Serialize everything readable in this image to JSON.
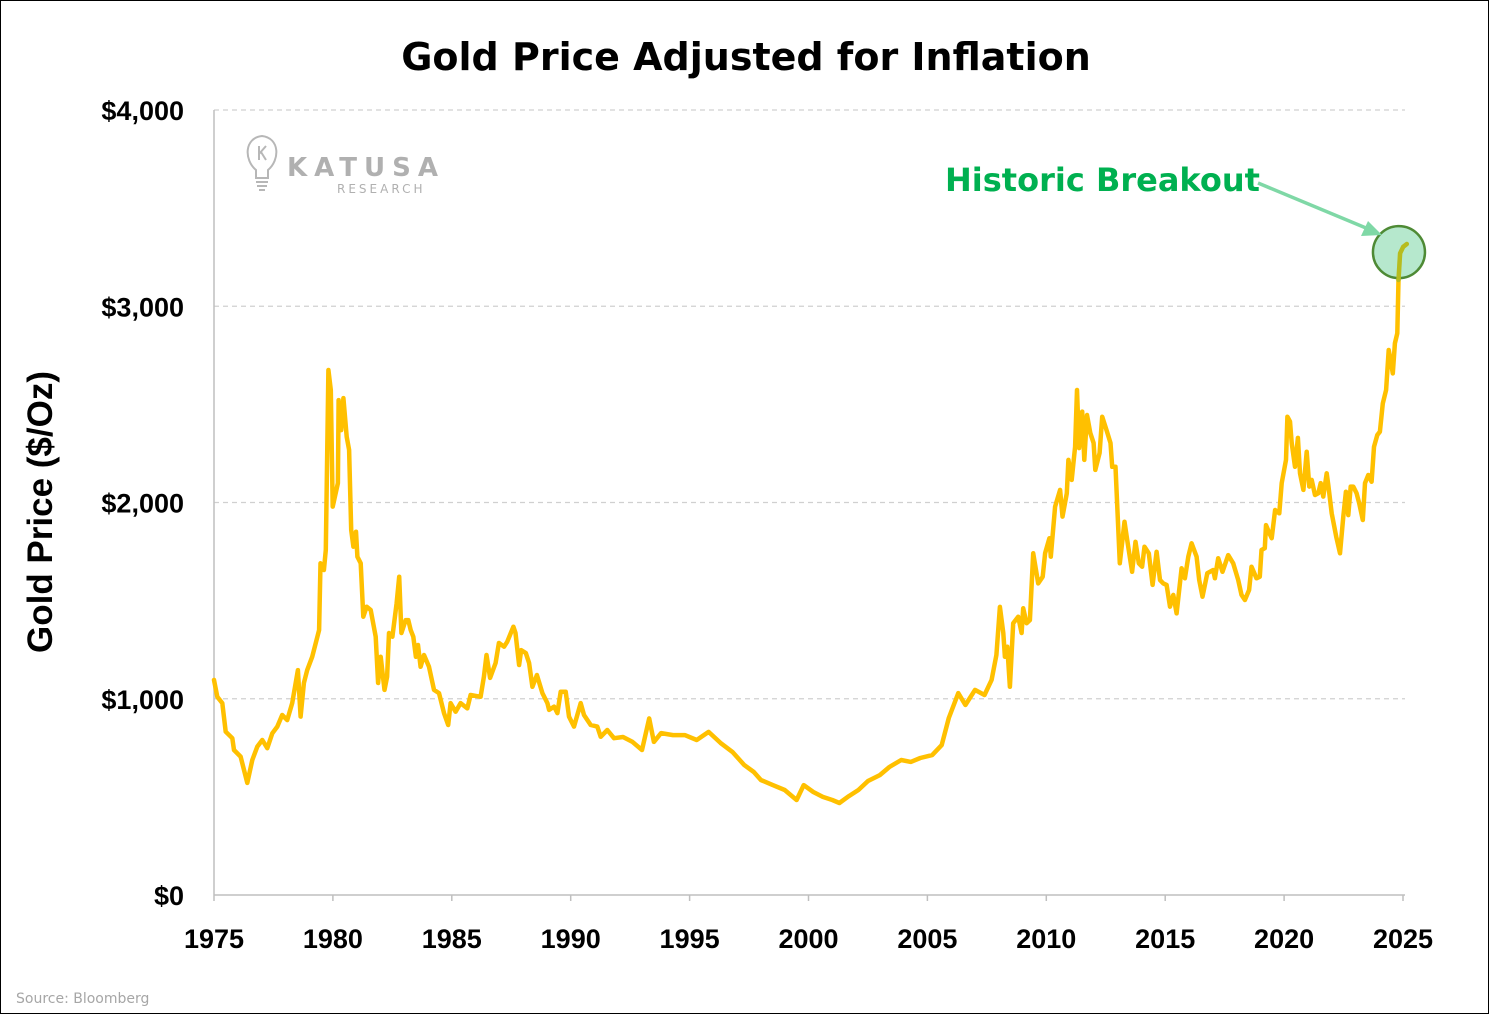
{
  "chart_data": {
    "type": "line",
    "title": "Gold Price Adjusted for Inflation",
    "xlabel": "",
    "ylabel": "Gold Price ($/Oz)",
    "xlim": [
      1975,
      2025
    ],
    "ylim": [
      0,
      4000
    ],
    "x_ticks": [
      "1975",
      "1980",
      "1985",
      "1990",
      "1995",
      "2000",
      "2005",
      "2010",
      "2015",
      "2020",
      "2025"
    ],
    "y_ticks": [
      "$0",
      "$1,000",
      "$2,000",
      "$3,000",
      "$4,000"
    ],
    "grid": "horizontal dashed",
    "line_color": "#ffc000",
    "annotation": {
      "text": "Historic Breakout",
      "color": "#00b050",
      "x": 2024.83,
      "y": 3276,
      "circle_fill": "#a9e4c4",
      "arrow_color": "#7fd8a6"
    },
    "source": "Source: Bloomberg",
    "watermark": {
      "name": "KATUSA",
      "sub": "RESEARCH"
    },
    "series": [
      {
        "x": [
          1975.0,
          1975.14,
          1975.35,
          1975.49,
          1975.77,
          1975.84,
          1976.12,
          1976.4,
          1976.61,
          1976.82,
          1977.03,
          1977.24,
          1977.45,
          1977.66,
          1977.87,
          1978.08,
          1978.29,
          1978.53,
          1978.64,
          1978.78,
          1978.92,
          1979.13,
          1979.42,
          1979.48,
          1979.62,
          1979.7,
          1979.81,
          1979.91,
          1979.99,
          1980.21,
          1980.24,
          1980.35,
          1980.44,
          1980.58,
          1980.68,
          1980.77,
          1980.86,
          1980.97,
          1981.03,
          1981.17,
          1981.28,
          1981.42,
          1981.59,
          1981.8,
          1981.9,
          1982.01,
          1982.17,
          1982.28,
          1982.36,
          1982.5,
          1982.68,
          1982.79,
          1982.88,
          1983.06,
          1983.17,
          1983.27,
          1983.38,
          1983.49,
          1983.58,
          1983.69,
          1983.83,
          1984.04,
          1984.25,
          1984.46,
          1984.67,
          1984.85,
          1984.95,
          1985.16,
          1985.37,
          1985.65,
          1985.79,
          1986.21,
          1986.35,
          1986.46,
          1986.61,
          1986.84,
          1986.98,
          1987.2,
          1987.33,
          1987.59,
          1987.68,
          1987.83,
          1987.92,
          1988.11,
          1988.25,
          1988.39,
          1988.58,
          1988.81,
          1989.02,
          1989.09,
          1989.3,
          1989.44,
          1989.58,
          1989.79,
          1989.93,
          1990.14,
          1990.42,
          1990.56,
          1990.84,
          1991.12,
          1991.26,
          1991.54,
          1991.82,
          1992.2,
          1992.6,
          1993.0,
          1993.3,
          1993.5,
          1993.8,
          1994.3,
          1994.8,
          1995.3,
          1995.8,
          1996.3,
          1996.8,
          1997.3,
          1997.7,
          1998.0,
          1998.5,
          1999.0,
          1999.5,
          1999.8,
          2000.2,
          2000.6,
          2001.0,
          2001.3,
          2001.7,
          2002.1,
          2002.5,
          2003.0,
          2003.4,
          2003.9,
          2004.3,
          2004.7,
          2005.2,
          2005.6,
          2005.9,
          2006.3,
          2006.6,
          2007.0,
          2007.4,
          2007.7,
          2007.9,
          2008.05,
          2008.19,
          2008.26,
          2008.36,
          2008.47,
          2008.61,
          2008.82,
          2008.96,
          2009.03,
          2009.17,
          2009.31,
          2009.45,
          2009.66,
          2009.85,
          2009.95,
          2010.13,
          2010.19,
          2010.37,
          2010.58,
          2010.68,
          2010.86,
          2010.93,
          2011.07,
          2011.21,
          2011.29,
          2011.38,
          2011.51,
          2011.6,
          2011.71,
          2011.85,
          2011.99,
          2012.06,
          2012.24,
          2012.35,
          2012.53,
          2012.7,
          2012.77,
          2012.91,
          2013.09,
          2013.29,
          2013.4,
          2013.61,
          2013.75,
          2013.89,
          2014.03,
          2014.13,
          2014.31,
          2014.47,
          2014.64,
          2014.78,
          2014.92,
          2015.06,
          2015.2,
          2015.34,
          2015.48,
          2015.69,
          2015.83,
          2015.97,
          2016.11,
          2016.32,
          2016.43,
          2016.57,
          2016.77,
          2017.02,
          2017.09,
          2017.23,
          2017.41,
          2017.65,
          2017.86,
          2018.07,
          2018.21,
          2018.35,
          2018.53,
          2018.63,
          2018.84,
          2018.98,
          2019.05,
          2019.19,
          2019.24,
          2019.38,
          2019.48,
          2019.62,
          2019.8,
          2019.9,
          2020.08,
          2020.14,
          2020.25,
          2020.32,
          2020.46,
          2020.58,
          2020.67,
          2020.81,
          2020.95,
          2021.06,
          2021.16,
          2021.3,
          2021.44,
          2021.54,
          2021.65,
          2021.79,
          2021.86,
          2022.0,
          2022.19,
          2022.35,
          2022.49,
          2022.6,
          2022.7,
          2022.8,
          2022.91,
          2023.05,
          2023.16,
          2023.31,
          2023.4,
          2023.54,
          2023.68,
          2023.78,
          2023.92,
          2024.03,
          2024.15,
          2024.29,
          2024.4,
          2024.48,
          2024.57,
          2024.66,
          2024.76,
          2024.81,
          2024.88,
          2025.01,
          2025.16
        ],
        "y": [
          1096,
          1010,
          978,
          832,
          799,
          739,
          705,
          571,
          688,
          756,
          790,
          748,
          824,
          858,
          917,
          891,
          978,
          1146,
          909,
          1080,
          1146,
          1214,
          1350,
          1690,
          1656,
          1758,
          2675,
          2573,
          1979,
          2099,
          2522,
          2369,
          2532,
          2335,
          2268,
          1860,
          1775,
          1851,
          1724,
          1690,
          1418,
          1469,
          1452,
          1316,
          1080,
          1214,
          1045,
          1112,
          1335,
          1316,
          1486,
          1622,
          1335,
          1401,
          1401,
          1350,
          1316,
          1214,
          1274,
          1163,
          1223,
          1163,
          1045,
          1029,
          927,
          866,
          978,
          934,
          978,
          951,
          1019,
          1010,
          1112,
          1223,
          1106,
          1182,
          1284,
          1265,
          1290,
          1367,
          1335,
          1172,
          1248,
          1233,
          1182,
          1061,
          1121,
          1029,
          978,
          943,
          960,
          927,
          1036,
          1036,
          909,
          858,
          978,
          917,
          866,
          858,
          806,
          841,
          799,
          805,
          780,
          739,
          900,
          780,
          825,
          815,
          815,
          790,
          831,
          775,
          729,
          662,
          627,
          586,
          560,
          535,
          484,
          560,
          525,
          500,
          484,
          469,
          504,
          535,
          581,
          611,
          652,
          688,
          678,
          698,
          713,
          764,
          902,
          1029,
          968,
          1045,
          1019,
          1096,
          1223,
          1468,
          1335,
          1214,
          1265,
          1061,
          1385,
          1418,
          1335,
          1461,
          1385,
          1401,
          1741,
          1588,
          1622,
          1741,
          1818,
          1724,
          1979,
          2064,
          1928,
          2047,
          2217,
          2115,
          2284,
          2573,
          2277,
          2463,
          2217,
          2446,
          2354,
          2303,
          2166,
          2252,
          2437,
          2369,
          2303,
          2182,
          2182,
          1690,
          1902,
          1809,
          1647,
          1800,
          1690,
          1673,
          1775,
          1741,
          1580,
          1749,
          1605,
          1588,
          1580,
          1469,
          1529,
          1435,
          1665,
          1614,
          1724,
          1792,
          1724,
          1605,
          1520,
          1640,
          1656,
          1614,
          1716,
          1647,
          1732,
          1690,
          1605,
          1529,
          1503,
          1554,
          1673,
          1614,
          1622,
          1758,
          1767,
          1885,
          1843,
          1818,
          1962,
          1945,
          2099,
          2217,
          2437,
          2412,
          2303,
          2182,
          2329,
          2149,
          2064,
          2259,
          2081,
          2115,
          2038,
          2047,
          2099,
          2030,
          2149,
          2089,
          1945,
          1826,
          1741,
          1928,
          2055,
          1936,
          2081,
          2081,
          2047,
          1996,
          1911,
          2099,
          2140,
          2106,
          2284,
          2344,
          2361,
          2505,
          2573,
          2777,
          2726,
          2658,
          2811,
          2862,
          3134,
          3270,
          3303,
          3317
        ]
      }
    ]
  }
}
